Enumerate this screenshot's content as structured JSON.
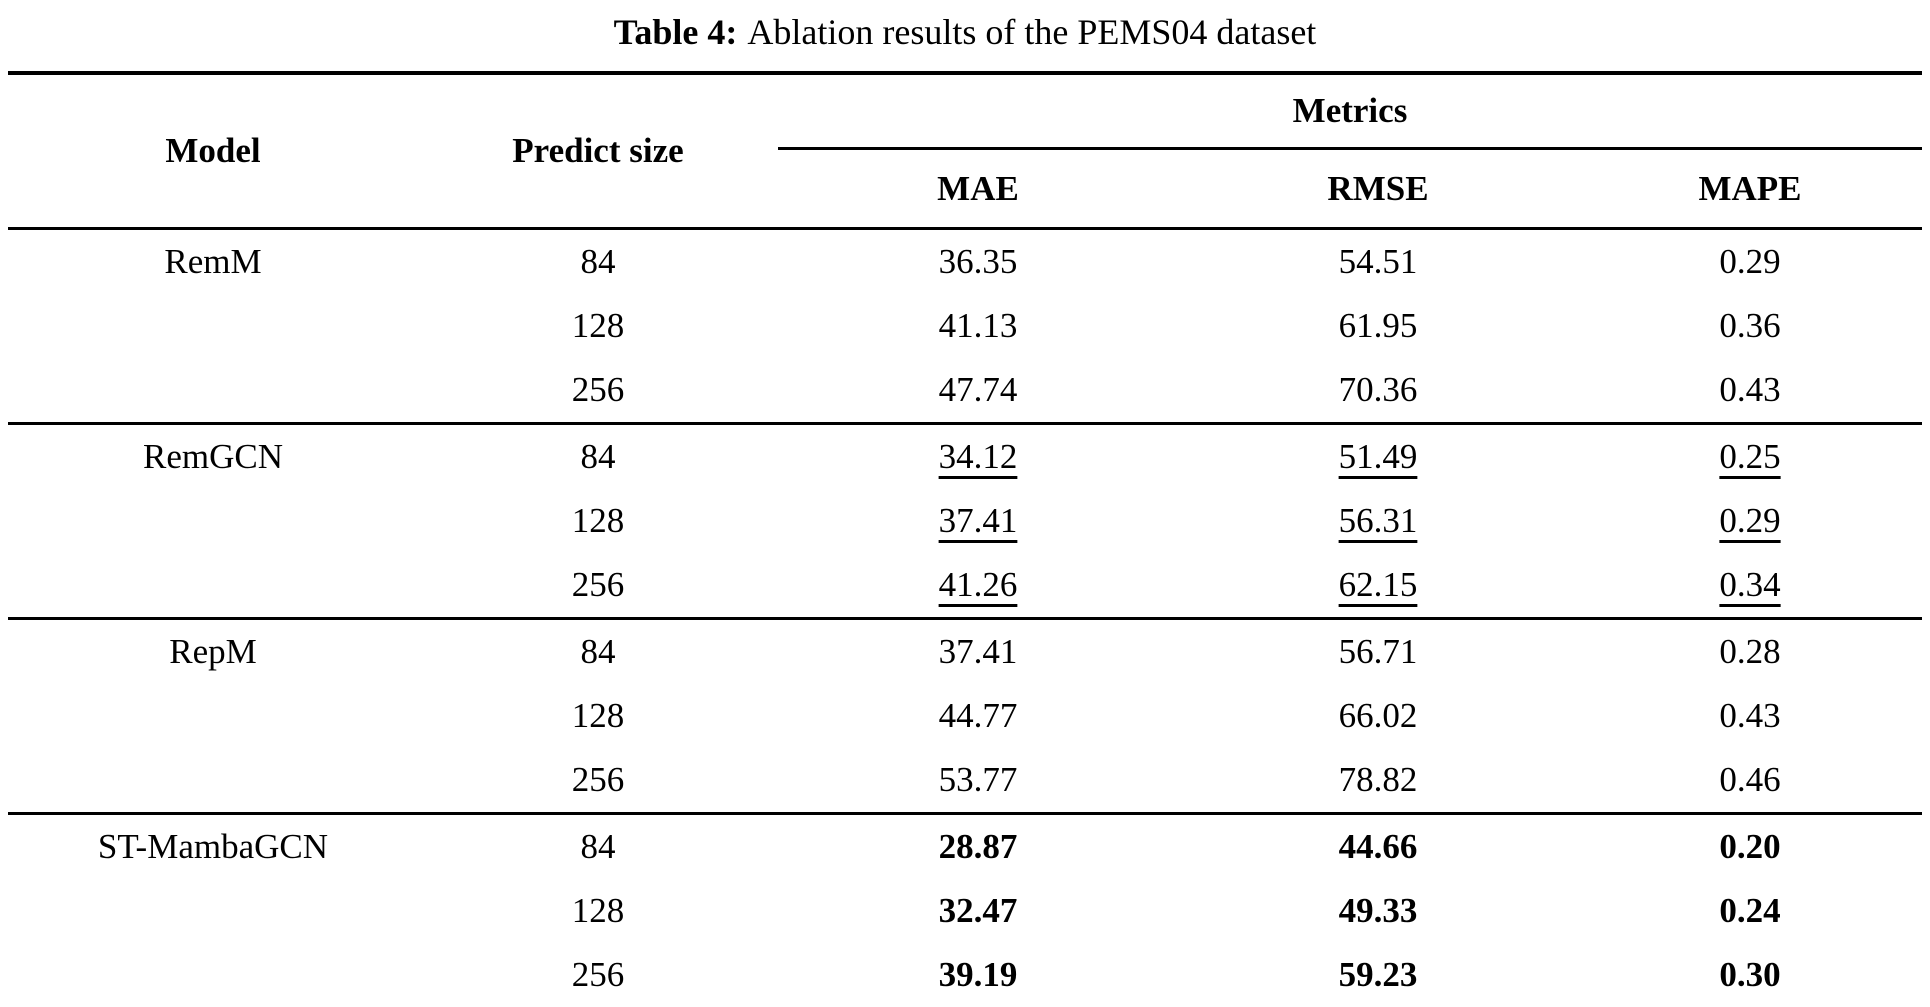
{
  "caption": {
    "prefix": "Table 4:",
    "text": "Ablation results of the PEMS04 dataset"
  },
  "table": {
    "headers": {
      "model": "Model",
      "predict_size": "Predict size",
      "metrics_group": "Metrics",
      "mae": "MAE",
      "rmse": "RMSE",
      "mape": "MAPE"
    },
    "groups": [
      {
        "model": "RemM",
        "emphasis": "none",
        "rows": [
          {
            "size": "84",
            "mae": "36.35",
            "rmse": "54.51",
            "mape": "0.29"
          },
          {
            "size": "128",
            "mae": "41.13",
            "rmse": "61.95",
            "mape": "0.36"
          },
          {
            "size": "256",
            "mae": "47.74",
            "rmse": "70.36",
            "mape": "0.43"
          }
        ]
      },
      {
        "model": "RemGCN",
        "emphasis": "underline",
        "rows": [
          {
            "size": "84",
            "mae": "34.12",
            "rmse": "51.49",
            "mape": "0.25"
          },
          {
            "size": "128",
            "mae": "37.41",
            "rmse": "56.31",
            "mape": "0.29"
          },
          {
            "size": "256",
            "mae": "41.26",
            "rmse": "62.15",
            "mape": "0.34"
          }
        ]
      },
      {
        "model": "RepM",
        "emphasis": "none",
        "rows": [
          {
            "size": "84",
            "mae": "37.41",
            "rmse": "56.71",
            "mape": "0.28"
          },
          {
            "size": "128",
            "mae": "44.77",
            "rmse": "66.02",
            "mape": "0.43"
          },
          {
            "size": "256",
            "mae": "53.77",
            "rmse": "78.82",
            "mape": "0.46"
          }
        ]
      },
      {
        "model": "ST-MambaGCN",
        "emphasis": "bold",
        "rows": [
          {
            "size": "84",
            "mae": "28.87",
            "rmse": "44.66",
            "mape": "0.20"
          },
          {
            "size": "128",
            "mae": "32.47",
            "rmse": "49.33",
            "mape": "0.24"
          },
          {
            "size": "256",
            "mae": "39.19",
            "rmse": "59.23",
            "mape": "0.30"
          }
        ]
      }
    ]
  }
}
